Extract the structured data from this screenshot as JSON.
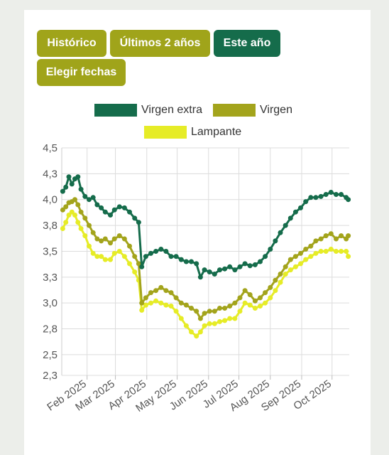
{
  "buttons": {
    "historico": "Histórico",
    "ultimos": "Últimos 2 años",
    "este": "Este año",
    "elegir": "Elegir fechas"
  },
  "colors": {
    "button_olive": "#a0a41a",
    "button_green": "#156c4b",
    "virgen_extra": "#156c4b",
    "virgen": "#a3a41c",
    "lampante": "#e6ec27"
  },
  "chart_data": {
    "type": "line",
    "title": "",
    "xlabel": "",
    "ylabel": "",
    "ylim": [
      2.3,
      4.5
    ],
    "yticks": [
      "2,3",
      "2,5",
      "2,8",
      "3,0",
      "3,3",
      "3,5",
      "3,8",
      "4,0",
      "4,3",
      "4,5"
    ],
    "ytick_values": [
      2.3,
      2.5,
      2.75,
      3.0,
      3.25,
      3.5,
      3.75,
      4.0,
      4.25,
      4.5
    ],
    "xticks": [
      "Feb 2025",
      "Mar 2025",
      "Apr 2025",
      "May 2025",
      "Jun 2025",
      "Jul 2025",
      "Aug 2025",
      "Sep 2025",
      "Oct 2025"
    ],
    "xtick_dates": [
      "2025-02-01",
      "2025-03-01",
      "2025-04-01",
      "2025-05-01",
      "2025-06-01",
      "2025-07-01",
      "2025-08-01",
      "2025-09-01",
      "2025-10-01"
    ],
    "xlim": [
      "2025-01-07",
      "2025-10-18"
    ],
    "grid": true,
    "legend_position": "top",
    "series": [
      {
        "name": "Virgen extra",
        "points": [
          [
            "2025-01-08",
            4.08
          ],
          [
            "2025-01-11",
            4.12
          ],
          [
            "2025-01-14",
            4.22
          ],
          [
            "2025-01-17",
            4.15
          ],
          [
            "2025-01-20",
            4.2
          ],
          [
            "2025-01-23",
            4.22
          ],
          [
            "2025-01-26",
            4.1
          ],
          [
            "2025-01-30",
            4.03
          ],
          [
            "2025-02-03",
            4.0
          ],
          [
            "2025-02-07",
            4.02
          ],
          [
            "2025-02-11",
            3.95
          ],
          [
            "2025-02-15",
            3.92
          ],
          [
            "2025-02-19",
            3.88
          ],
          [
            "2025-02-24",
            3.85
          ],
          [
            "2025-02-28",
            3.9
          ],
          [
            "2025-03-05",
            3.93
          ],
          [
            "2025-03-10",
            3.92
          ],
          [
            "2025-03-15",
            3.88
          ],
          [
            "2025-03-20",
            3.82
          ],
          [
            "2025-03-24",
            3.78
          ],
          [
            "2025-03-27",
            3.35
          ],
          [
            "2025-03-31",
            3.45
          ],
          [
            "2025-04-05",
            3.48
          ],
          [
            "2025-04-10",
            3.5
          ],
          [
            "2025-04-15",
            3.52
          ],
          [
            "2025-04-20",
            3.5
          ],
          [
            "2025-04-25",
            3.45
          ],
          [
            "2025-04-30",
            3.45
          ],
          [
            "2025-05-05",
            3.42
          ],
          [
            "2025-05-10",
            3.4
          ],
          [
            "2025-05-15",
            3.4
          ],
          [
            "2025-05-20",
            3.38
          ],
          [
            "2025-05-24",
            3.25
          ],
          [
            "2025-05-28",
            3.32
          ],
          [
            "2025-06-02",
            3.3
          ],
          [
            "2025-06-07",
            3.28
          ],
          [
            "2025-06-12",
            3.32
          ],
          [
            "2025-06-17",
            3.33
          ],
          [
            "2025-06-22",
            3.35
          ],
          [
            "2025-06-27",
            3.32
          ],
          [
            "2025-07-02",
            3.35
          ],
          [
            "2025-07-07",
            3.38
          ],
          [
            "2025-07-12",
            3.36
          ],
          [
            "2025-07-17",
            3.37
          ],
          [
            "2025-07-22",
            3.4
          ],
          [
            "2025-07-27",
            3.45
          ],
          [
            "2025-08-01",
            3.52
          ],
          [
            "2025-08-06",
            3.6
          ],
          [
            "2025-08-11",
            3.68
          ],
          [
            "2025-08-16",
            3.75
          ],
          [
            "2025-08-21",
            3.82
          ],
          [
            "2025-08-26",
            3.88
          ],
          [
            "2025-08-31",
            3.92
          ],
          [
            "2025-09-05",
            3.98
          ],
          [
            "2025-09-10",
            4.02
          ],
          [
            "2025-09-15",
            4.02
          ],
          [
            "2025-09-20",
            4.03
          ],
          [
            "2025-09-25",
            4.05
          ],
          [
            "2025-09-30",
            4.07
          ],
          [
            "2025-10-05",
            4.05
          ],
          [
            "2025-10-10",
            4.05
          ],
          [
            "2025-10-15",
            4.02
          ],
          [
            "2025-10-17",
            4.0
          ]
        ]
      },
      {
        "name": "Virgen",
        "points": [
          [
            "2025-01-08",
            3.9
          ],
          [
            "2025-01-11",
            3.93
          ],
          [
            "2025-01-14",
            3.97
          ],
          [
            "2025-01-17",
            3.98
          ],
          [
            "2025-01-20",
            4.0
          ],
          [
            "2025-01-23",
            3.95
          ],
          [
            "2025-01-26",
            3.88
          ],
          [
            "2025-01-30",
            3.82
          ],
          [
            "2025-02-03",
            3.75
          ],
          [
            "2025-02-07",
            3.68
          ],
          [
            "2025-02-11",
            3.62
          ],
          [
            "2025-02-15",
            3.6
          ],
          [
            "2025-02-19",
            3.62
          ],
          [
            "2025-02-24",
            3.58
          ],
          [
            "2025-02-28",
            3.62
          ],
          [
            "2025-03-05",
            3.65
          ],
          [
            "2025-03-10",
            3.62
          ],
          [
            "2025-03-15",
            3.55
          ],
          [
            "2025-03-20",
            3.45
          ],
          [
            "2025-03-24",
            3.38
          ],
          [
            "2025-03-27",
            3.0
          ],
          [
            "2025-03-31",
            3.05
          ],
          [
            "2025-04-05",
            3.1
          ],
          [
            "2025-04-10",
            3.12
          ],
          [
            "2025-04-15",
            3.15
          ],
          [
            "2025-04-20",
            3.12
          ],
          [
            "2025-04-25",
            3.1
          ],
          [
            "2025-04-30",
            3.05
          ],
          [
            "2025-05-05",
            3.0
          ],
          [
            "2025-05-10",
            2.98
          ],
          [
            "2025-05-15",
            2.95
          ],
          [
            "2025-05-20",
            2.92
          ],
          [
            "2025-05-24",
            2.85
          ],
          [
            "2025-05-28",
            2.9
          ],
          [
            "2025-06-02",
            2.92
          ],
          [
            "2025-06-07",
            2.92
          ],
          [
            "2025-06-12",
            2.95
          ],
          [
            "2025-06-17",
            2.95
          ],
          [
            "2025-06-22",
            2.97
          ],
          [
            "2025-06-27",
            3.0
          ],
          [
            "2025-07-02",
            3.05
          ],
          [
            "2025-07-07",
            3.12
          ],
          [
            "2025-07-12",
            3.08
          ],
          [
            "2025-07-17",
            3.02
          ],
          [
            "2025-07-22",
            3.05
          ],
          [
            "2025-07-27",
            3.1
          ],
          [
            "2025-08-01",
            3.15
          ],
          [
            "2025-08-06",
            3.22
          ],
          [
            "2025-08-11",
            3.28
          ],
          [
            "2025-08-16",
            3.35
          ],
          [
            "2025-08-21",
            3.42
          ],
          [
            "2025-08-26",
            3.45
          ],
          [
            "2025-08-31",
            3.48
          ],
          [
            "2025-09-05",
            3.52
          ],
          [
            "2025-09-10",
            3.55
          ],
          [
            "2025-09-15",
            3.6
          ],
          [
            "2025-09-20",
            3.62
          ],
          [
            "2025-09-25",
            3.65
          ],
          [
            "2025-09-30",
            3.67
          ],
          [
            "2025-10-05",
            3.62
          ],
          [
            "2025-10-10",
            3.65
          ],
          [
            "2025-10-15",
            3.62
          ],
          [
            "2025-10-17",
            3.65
          ]
        ]
      },
      {
        "name": "Lampante",
        "points": [
          [
            "2025-01-08",
            3.72
          ],
          [
            "2025-01-11",
            3.78
          ],
          [
            "2025-01-14",
            3.85
          ],
          [
            "2025-01-17",
            3.88
          ],
          [
            "2025-01-20",
            3.85
          ],
          [
            "2025-01-23",
            3.78
          ],
          [
            "2025-01-26",
            3.72
          ],
          [
            "2025-01-30",
            3.65
          ],
          [
            "2025-02-03",
            3.55
          ],
          [
            "2025-02-07",
            3.48
          ],
          [
            "2025-02-11",
            3.45
          ],
          [
            "2025-02-15",
            3.45
          ],
          [
            "2025-02-19",
            3.42
          ],
          [
            "2025-02-24",
            3.42
          ],
          [
            "2025-02-28",
            3.48
          ],
          [
            "2025-03-05",
            3.5
          ],
          [
            "2025-03-10",
            3.45
          ],
          [
            "2025-03-15",
            3.38
          ],
          [
            "2025-03-20",
            3.3
          ],
          [
            "2025-03-24",
            3.22
          ],
          [
            "2025-03-27",
            2.93
          ],
          [
            "2025-03-31",
            2.98
          ],
          [
            "2025-04-05",
            3.0
          ],
          [
            "2025-04-10",
            3.02
          ],
          [
            "2025-04-15",
            3.0
          ],
          [
            "2025-04-20",
            2.98
          ],
          [
            "2025-04-25",
            2.97
          ],
          [
            "2025-04-30",
            2.92
          ],
          [
            "2025-05-05",
            2.85
          ],
          [
            "2025-05-10",
            2.78
          ],
          [
            "2025-05-15",
            2.72
          ],
          [
            "2025-05-20",
            2.68
          ],
          [
            "2025-05-24",
            2.72
          ],
          [
            "2025-05-28",
            2.78
          ],
          [
            "2025-06-02",
            2.8
          ],
          [
            "2025-06-07",
            2.8
          ],
          [
            "2025-06-12",
            2.82
          ],
          [
            "2025-06-17",
            2.83
          ],
          [
            "2025-06-22",
            2.85
          ],
          [
            "2025-06-27",
            2.85
          ],
          [
            "2025-07-02",
            2.92
          ],
          [
            "2025-07-07",
            3.0
          ],
          [
            "2025-07-12",
            2.98
          ],
          [
            "2025-07-17",
            2.95
          ],
          [
            "2025-07-22",
            2.97
          ],
          [
            "2025-07-27",
            3.0
          ],
          [
            "2025-08-01",
            3.05
          ],
          [
            "2025-08-06",
            3.12
          ],
          [
            "2025-08-11",
            3.2
          ],
          [
            "2025-08-16",
            3.28
          ],
          [
            "2025-08-21",
            3.32
          ],
          [
            "2025-08-26",
            3.35
          ],
          [
            "2025-08-31",
            3.38
          ],
          [
            "2025-09-05",
            3.42
          ],
          [
            "2025-09-10",
            3.45
          ],
          [
            "2025-09-15",
            3.48
          ],
          [
            "2025-09-20",
            3.5
          ],
          [
            "2025-09-25",
            3.5
          ],
          [
            "2025-09-30",
            3.52
          ],
          [
            "2025-10-05",
            3.5
          ],
          [
            "2025-10-10",
            3.5
          ],
          [
            "2025-10-15",
            3.5
          ],
          [
            "2025-10-17",
            3.45
          ]
        ]
      }
    ]
  }
}
